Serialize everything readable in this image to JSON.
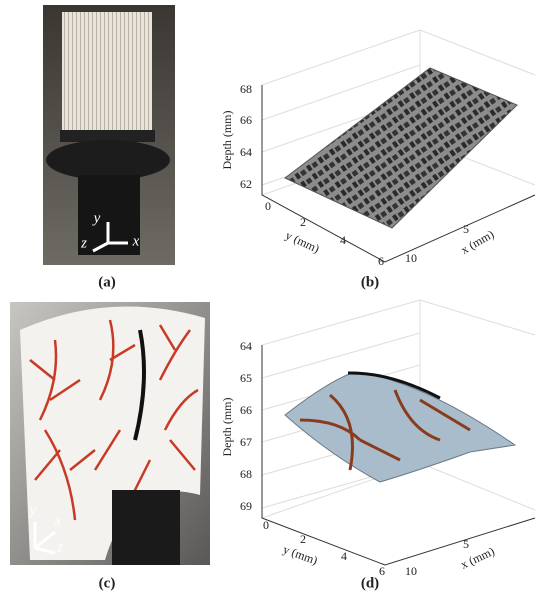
{
  "panels": [
    {
      "label": "(a)",
      "axes": [
        "y",
        "z",
        "x"
      ]
    },
    {
      "label": "(b)",
      "z_label": "Depth (mm)",
      "z_ticks": [
        68,
        66,
        64,
        62
      ],
      "y_label": "y (mm)",
      "y_ticks": [
        0,
        2,
        4,
        6
      ],
      "x_label": "x (mm)",
      "x_ticks": [
        5,
        10
      ]
    },
    {
      "label": "(c)",
      "axes": [
        "y",
        "x",
        "z"
      ]
    },
    {
      "label": "(d)",
      "z_label": "Depth (mm)",
      "z_ticks": [
        64,
        65,
        66,
        67,
        68,
        69
      ],
      "y_label": "y (mm)",
      "y_ticks": [
        0,
        2,
        4,
        6
      ],
      "x_label": "x (mm)",
      "x_ticks": [
        5,
        10
      ]
    }
  ]
}
